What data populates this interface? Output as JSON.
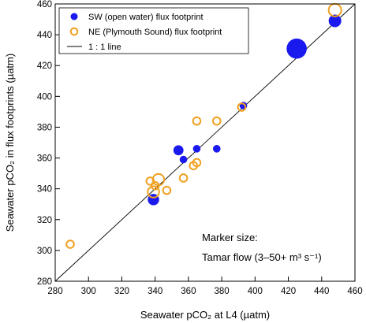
{
  "chart_data": {
    "type": "scatter",
    "xlabel": "Seawater pCO₂ at L4 (µatm)",
    "ylabel": "Seawater pCO₂ in flux footprints (µatm)",
    "xlim": [
      280,
      460
    ],
    "ylim": [
      280,
      460
    ],
    "xticks": [
      280,
      300,
      320,
      340,
      360,
      380,
      400,
      420,
      440,
      460
    ],
    "yticks": [
      280,
      300,
      320,
      340,
      360,
      380,
      400,
      420,
      440,
      460
    ],
    "grid": false,
    "legend_position": "top-left",
    "legend": [
      "SW (open water) flux footprint",
      "NE (Plymouth Sound) flux footprint",
      "1 : 1 line"
    ],
    "series": [
      {
        "name": "SW (open water) flux footprint",
        "marker": "filled-circle",
        "color": "#1a1aee",
        "points": [
          {
            "x": 339,
            "y": 333,
            "size": 9
          },
          {
            "x": 354,
            "y": 365,
            "size": 8
          },
          {
            "x": 357,
            "y": 359,
            "size": 6
          },
          {
            "x": 365,
            "y": 366,
            "size": 6
          },
          {
            "x": 377,
            "y": 366,
            "size": 6
          },
          {
            "x": 393,
            "y": 394,
            "size": 6
          },
          {
            "x": 425,
            "y": 431,
            "size": 16
          },
          {
            "x": 448,
            "y": 449,
            "size": 10
          }
        ]
      },
      {
        "name": "NE (Plymouth Sound) flux footprint",
        "marker": "open-circle",
        "color": "#f0a020",
        "points": [
          {
            "x": 289,
            "y": 304,
            "size": 6
          },
          {
            "x": 337,
            "y": 345,
            "size": 6
          },
          {
            "x": 339,
            "y": 338,
            "size": 9
          },
          {
            "x": 340,
            "y": 342,
            "size": 6
          },
          {
            "x": 342,
            "y": 346,
            "size": 9
          },
          {
            "x": 347,
            "y": 339,
            "size": 6
          },
          {
            "x": 357,
            "y": 347,
            "size": 6
          },
          {
            "x": 363,
            "y": 355,
            "size": 6
          },
          {
            "x": 365,
            "y": 357,
            "size": 6
          },
          {
            "x": 365,
            "y": 384,
            "size": 6
          },
          {
            "x": 377,
            "y": 384,
            "size": 6
          },
          {
            "x": 392,
            "y": 393,
            "size": 6
          },
          {
            "x": 448,
            "y": 456,
            "size": 10
          }
        ]
      },
      {
        "name": "1 : 1 line",
        "type": "line",
        "color": "#000000",
        "x": [
          280,
          460
        ],
        "y": [
          280,
          460
        ]
      }
    ],
    "annotations": [
      "Marker size:",
      "Tamar flow (3–50+ m³ s⁻¹)"
    ]
  }
}
